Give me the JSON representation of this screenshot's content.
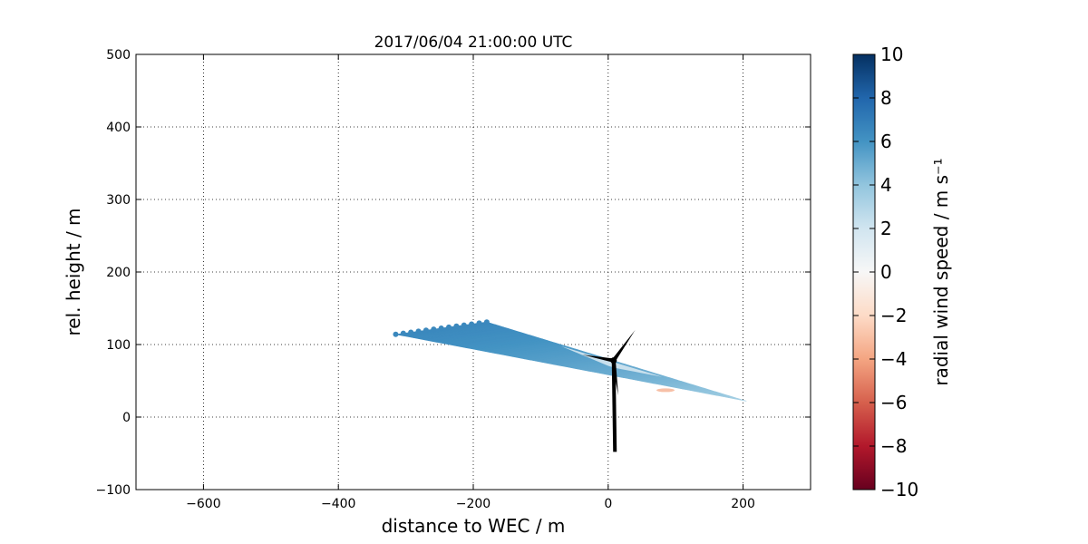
{
  "chart_data": {
    "type": "scatter",
    "title": "2017/06/04 21:00:00 UTC",
    "xlabel": "distance to WEC / m",
    "ylabel": "rel. height / m",
    "xlim": [
      -700,
      300
    ],
    "ylim": [
      -100,
      500
    ],
    "x_ticks": [
      -600,
      -400,
      -200,
      0,
      200
    ],
    "y_ticks": [
      -100,
      0,
      100,
      200,
      300,
      400,
      500
    ],
    "x_tick_labels": [
      "−600",
      "−400",
      "−200",
      "0",
      "200"
    ],
    "y_tick_labels": [
      "−100",
      "0",
      "100",
      "200",
      "300",
      "400",
      "500"
    ],
    "grid": true,
    "colorbar": {
      "label": "radial wind speed / m s⁻¹",
      "range": [
        -10,
        10
      ],
      "ticks": [
        -10,
        -8,
        -6,
        -4,
        -2,
        0,
        2,
        4,
        6,
        8,
        10
      ],
      "tick_labels": [
        "−10",
        "−8",
        "−6",
        "−4",
        "−2",
        "0",
        "2",
        "4",
        "6",
        "8",
        "10"
      ],
      "colormap": "RdBu",
      "colors": [
        "#67001f",
        "#b2182b",
        "#d6604d",
        "#f4a582",
        "#fddbc7",
        "#f7f7f7",
        "#d1e5f0",
        "#92c5de",
        "#4393c3",
        "#2166ac",
        "#053061"
      ]
    },
    "scan": {
      "apex": [
        205,
        22
      ],
      "far_top": [
        -180,
        131
      ],
      "far_bottom": [
        -315,
        114
      ],
      "range_rings": 12,
      "value_near": 3,
      "value_far": 6.5,
      "clear_band": {
        "x_from": -70,
        "x_to": 80,
        "y_center_offset": 8,
        "value": 1.5
      },
      "small_negative_patch": {
        "x": 85,
        "y": 37,
        "value": -4
      }
    },
    "turbine": {
      "hub": [
        8,
        78
      ],
      "tower_base": [
        10,
        -48
      ],
      "blade_tips": [
        [
          40,
          120
        ],
        [
          -38,
          86
        ],
        [
          15,
          30
        ]
      ],
      "color": "#000000"
    }
  }
}
